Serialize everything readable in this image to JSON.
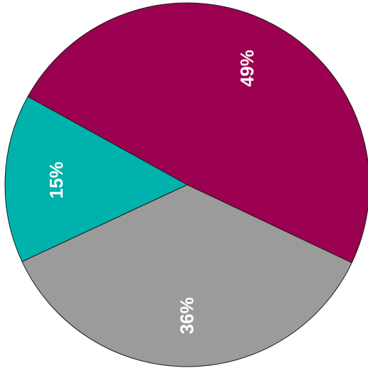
{
  "chart_data": {
    "type": "pie",
    "slices": [
      {
        "value": 49,
        "label": "49%",
        "color": "#9c0050"
      },
      {
        "value": 36,
        "label": "36%",
        "color": "#9b9b9b"
      },
      {
        "value": 15,
        "label": "15%",
        "color": "#00b2ac"
      }
    ],
    "label_color": "#ffffff",
    "label_orientation": "rotated-vertical",
    "outline_color": "#1a1a1a"
  }
}
